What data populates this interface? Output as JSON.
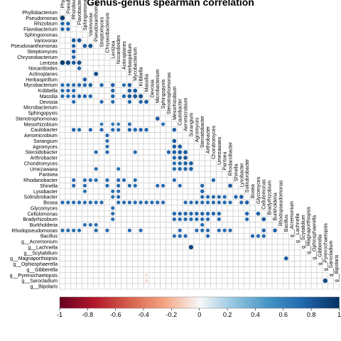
{
  "chart_data": {
    "type": "heatmap",
    "subtype": "lower-triangle correlation matrix",
    "title": "Genus-genus spearman correlation",
    "taxa": [
      "Phyllobacterium",
      "Pseudomonas",
      "Rhizobium",
      "Flavobacterium",
      "Sphingomonas",
      "Variovorax",
      "Pseudoxanthomonas",
      "Streptomyces",
      "Chryseobacterium",
      "Lentzea",
      "Nocardioides",
      "Actinoplanes",
      "Herbaspirillum",
      "Mycobacterium",
      "Kribbella",
      "Massilia",
      "Devosia",
      "Microbacterium",
      "Sphingopyxis",
      "Stenotrophomonas",
      "Mesorhizobium",
      "Caulobacter",
      "Aeromicrobium",
      "Sorangium",
      "Agromyces",
      "Steroidobacter",
      "Arthrobacter",
      "Chondromyces",
      "Umezawaea",
      "Pantoea",
      "Rhodanobacter",
      "Shinella",
      "Lysobacter",
      "Solirubrobacter",
      "Bosea",
      "Glycomyces",
      "Cellulomonas",
      "Bradyrhizobium",
      "Burkholderia",
      "Rhodopseudomonas",
      "Bacillus",
      "g__Acremonium",
      "g__Lachnella",
      "g__Scytalidium",
      "g__Magnaporthiopsis",
      "g__Ophiosphaerella",
      "g__Gibberella",
      "g__Pyrenochaetopsis",
      "g__Sarocladium",
      "g__Bipolaris"
    ],
    "colorbar": {
      "ticks": [
        "-1",
        "-0.8",
        "-0.6",
        "-0.4",
        "-0.2",
        "0",
        "0.2",
        "0.4",
        "0.6",
        "0.8",
        "1"
      ],
      "range": [
        -1,
        1
      ],
      "low_color": "#67001f",
      "mid_color": "#f7f7f7",
      "high_color": "#053061"
    },
    "correlations": [
      [
        1,
        0,
        0.95
      ],
      [
        2,
        0,
        0.75
      ],
      [
        2,
        1,
        0.75
      ],
      [
        3,
        0,
        0.75
      ],
      [
        3,
        1,
        0.75
      ],
      [
        5,
        2,
        0.8
      ],
      [
        5,
        3,
        0.82
      ],
      [
        6,
        2,
        0.75
      ],
      [
        6,
        4,
        0.8
      ],
      [
        6,
        5,
        0.85
      ],
      [
        7,
        2,
        0.78
      ],
      [
        8,
        2,
        0.75
      ],
      [
        9,
        0,
        0.95
      ],
      [
        9,
        1,
        0.9
      ],
      [
        9,
        2,
        0.8
      ],
      [
        9,
        3,
        0.85
      ],
      [
        10,
        3,
        0.75
      ],
      [
        11,
        6,
        0.85
      ],
      [
        12,
        4,
        0.78
      ],
      [
        13,
        0,
        0.72
      ],
      [
        13,
        1,
        0.72
      ],
      [
        13,
        2,
        0.72
      ],
      [
        13,
        3,
        0.75
      ],
      [
        13,
        4,
        0.75
      ],
      [
        13,
        5,
        0.78
      ],
      [
        13,
        7,
        0.75
      ],
      [
        13,
        9,
        0.78
      ],
      [
        13,
        11,
        0.72
      ],
      [
        13,
        12,
        0.8
      ],
      [
        14,
        0,
        0.72
      ],
      [
        14,
        1,
        0.72
      ],
      [
        14,
        2,
        0.72
      ],
      [
        14,
        9,
        0.75
      ],
      [
        14,
        12,
        0.78
      ],
      [
        14,
        13,
        0.8
      ],
      [
        15,
        0,
        0.72
      ],
      [
        15,
        1,
        0.72
      ],
      [
        15,
        2,
        0.72
      ],
      [
        15,
        3,
        0.75
      ],
      [
        15,
        4,
        0.75
      ],
      [
        15,
        5,
        0.75
      ],
      [
        15,
        9,
        0.75
      ],
      [
        15,
        11,
        0.75
      ],
      [
        15,
        12,
        0.8
      ],
      [
        15,
        13,
        0.82
      ],
      [
        15,
        14,
        0.85
      ],
      [
        16,
        2,
        0.72
      ],
      [
        16,
        7,
        0.72
      ],
      [
        16,
        9,
        0.72
      ],
      [
        16,
        12,
        0.75
      ],
      [
        16,
        14,
        0.75
      ],
      [
        16,
        15,
        0.8
      ],
      [
        19,
        17,
        0.8
      ],
      [
        20,
        7,
        0.65
      ],
      [
        20,
        9,
        0.65
      ],
      [
        20,
        10,
        0.65
      ],
      [
        20,
        12,
        0.7
      ],
      [
        20,
        18,
        0.7
      ],
      [
        21,
        2,
        0.75
      ],
      [
        21,
        3,
        0.72
      ],
      [
        21,
        5,
        0.72
      ],
      [
        21,
        7,
        0.72
      ],
      [
        21,
        9,
        0.72
      ],
      [
        21,
        10,
        0.72
      ],
      [
        21,
        12,
        0.75
      ],
      [
        21,
        13,
        0.75
      ],
      [
        21,
        14,
        0.75
      ],
      [
        21,
        15,
        0.75
      ],
      [
        21,
        20,
        0.78
      ],
      [
        22,
        8,
        0.72
      ],
      [
        23,
        8,
        0.7
      ],
      [
        23,
        20,
        0.8
      ],
      [
        24,
        8,
        0.7
      ],
      [
        24,
        20,
        0.78
      ],
      [
        24,
        21,
        0.8
      ],
      [
        25,
        6,
        0.72
      ],
      [
        25,
        8,
        0.72
      ],
      [
        25,
        13,
        0.72
      ],
      [
        25,
        19,
        0.75
      ],
      [
        25,
        20,
        0.78
      ],
      [
        25,
        21,
        0.8
      ],
      [
        25,
        22,
        0.8
      ],
      [
        26,
        20,
        0.75
      ],
      [
        26,
        21,
        0.78
      ],
      [
        26,
        22,
        0.8
      ],
      [
        27,
        20,
        0.72
      ],
      [
        27,
        21,
        0.75
      ],
      [
        27,
        22,
        0.78
      ],
      [
        27,
        23,
        0.8
      ],
      [
        28,
        6,
        0.7
      ],
      [
        28,
        10,
        0.7
      ],
      [
        28,
        20,
        0.72
      ],
      [
        28,
        21,
        0.75
      ],
      [
        28,
        22,
        0.75
      ],
      [
        28,
        23,
        0.78
      ],
      [
        30,
        2,
        0.72
      ],
      [
        30,
        4,
        0.72
      ],
      [
        30,
        5,
        0.72
      ],
      [
        30,
        6,
        0.72
      ],
      [
        30,
        8,
        0.72
      ],
      [
        30,
        10,
        0.72
      ],
      [
        30,
        11,
        0.72
      ],
      [
        30,
        13,
        0.72
      ],
      [
        30,
        20,
        0.72
      ],
      [
        30,
        27,
        0.75
      ],
      [
        31,
        2,
        0.72
      ],
      [
        31,
        4,
        0.72
      ],
      [
        31,
        8,
        0.72
      ],
      [
        31,
        10,
        0.72
      ],
      [
        31,
        12,
        0.72
      ],
      [
        31,
        13,
        0.72
      ],
      [
        31,
        17,
        0.72
      ],
      [
        31,
        18,
        0.72
      ],
      [
        31,
        21,
        0.72
      ],
      [
        31,
        25,
        0.75
      ],
      [
        31,
        30,
        0.8
      ],
      [
        32,
        4,
        0.7
      ],
      [
        32,
        9,
        0.7
      ],
      [
        32,
        10,
        0.7
      ],
      [
        32,
        25,
        0.75
      ],
      [
        33,
        9,
        0.7
      ],
      [
        33,
        10,
        0.72
      ],
      [
        33,
        25,
        0.72
      ],
      [
        33,
        26,
        0.72
      ],
      [
        33,
        27,
        0.72
      ],
      [
        33,
        28,
        0.72
      ],
      [
        33,
        29,
        0.72
      ],
      [
        33,
        31,
        0.75
      ],
      [
        33,
        32,
        0.78
      ],
      [
        34,
        0,
        0.72
      ],
      [
        34,
        1,
        0.72
      ],
      [
        34,
        2,
        0.72
      ],
      [
        34,
        3,
        0.72
      ],
      [
        34,
        4,
        0.72
      ],
      [
        34,
        5,
        0.72
      ],
      [
        34,
        6,
        0.72
      ],
      [
        34,
        7,
        0.72
      ],
      [
        34,
        10,
        0.72
      ],
      [
        34,
        11,
        0.72
      ],
      [
        34,
        12,
        0.72
      ],
      [
        34,
        13,
        0.72
      ],
      [
        34,
        14,
        0.72
      ],
      [
        34,
        15,
        0.72
      ],
      [
        34,
        16,
        0.72
      ],
      [
        34,
        17,
        0.72
      ],
      [
        34,
        18,
        0.72
      ],
      [
        34,
        22,
        0.72
      ],
      [
        34,
        23,
        0.72
      ],
      [
        34,
        24,
        0.72
      ],
      [
        34,
        25,
        0.72
      ],
      [
        34,
        26,
        0.72
      ],
      [
        34,
        27,
        0.72
      ],
      [
        34,
        28,
        0.72
      ],
      [
        34,
        29,
        0.72
      ],
      [
        34,
        30,
        0.72
      ],
      [
        34,
        32,
        0.72
      ],
      [
        34,
        33,
        0.78
      ],
      [
        35,
        9,
        0.7
      ],
      [
        36,
        9,
        0.7
      ],
      [
        36,
        20,
        0.75
      ],
      [
        36,
        21,
        0.75
      ],
      [
        36,
        22,
        0.75
      ],
      [
        36,
        23,
        0.75
      ],
      [
        36,
        24,
        0.75
      ],
      [
        36,
        25,
        0.75
      ],
      [
        36,
        26,
        0.75
      ],
      [
        36,
        27,
        0.75
      ],
      [
        36,
        28,
        0.75
      ],
      [
        36,
        33,
        0.75
      ],
      [
        36,
        35,
        0.78
      ],
      [
        37,
        9,
        0.7
      ],
      [
        37,
        20,
        0.72
      ],
      [
        37,
        21,
        0.72
      ],
      [
        37,
        22,
        0.72
      ],
      [
        37,
        23,
        0.72
      ],
      [
        37,
        24,
        0.72
      ],
      [
        37,
        25,
        0.72
      ],
      [
        37,
        26,
        0.72
      ],
      [
        37,
        28,
        0.72
      ],
      [
        37,
        33,
        0.72
      ],
      [
        37,
        36,
        0.8
      ],
      [
        38,
        4,
        0.7
      ],
      [
        38,
        5,
        0.7
      ],
      [
        38,
        6,
        0.7
      ],
      [
        38,
        25,
        0.72
      ],
      [
        39,
        0,
        0.72
      ],
      [
        39,
        1,
        0.72
      ],
      [
        39,
        2,
        0.72
      ],
      [
        39,
        3,
        0.72
      ],
      [
        39,
        6,
        0.72
      ],
      [
        39,
        8,
        0.72
      ],
      [
        39,
        12,
        0.72
      ],
      [
        39,
        14,
        0.72
      ],
      [
        39,
        21,
        0.72
      ],
      [
        39,
        24,
        0.72
      ],
      [
        39,
        25,
        0.72
      ],
      [
        39,
        26,
        0.72
      ],
      [
        39,
        28,
        0.72
      ],
      [
        39,
        29,
        0.72
      ],
      [
        39,
        30,
        0.72
      ],
      [
        39,
        36,
        0.75
      ],
      [
        39,
        38,
        0.78
      ],
      [
        40,
        20,
        0.7
      ],
      [
        40,
        21,
        0.72
      ],
      [
        40,
        22,
        0.72
      ],
      [
        40,
        26,
        0.72
      ],
      [
        40,
        34,
        0.72
      ],
      [
        40,
        35,
        0.72
      ],
      [
        40,
        36,
        0.72
      ],
      [
        42,
        23,
        0.9
      ],
      [
        44,
        40,
        0.8
      ],
      [
        47,
        15,
        -0.1
      ],
      [
        48,
        15,
        -0.1
      ],
      [
        48,
        47,
        0.9
      ]
    ]
  }
}
